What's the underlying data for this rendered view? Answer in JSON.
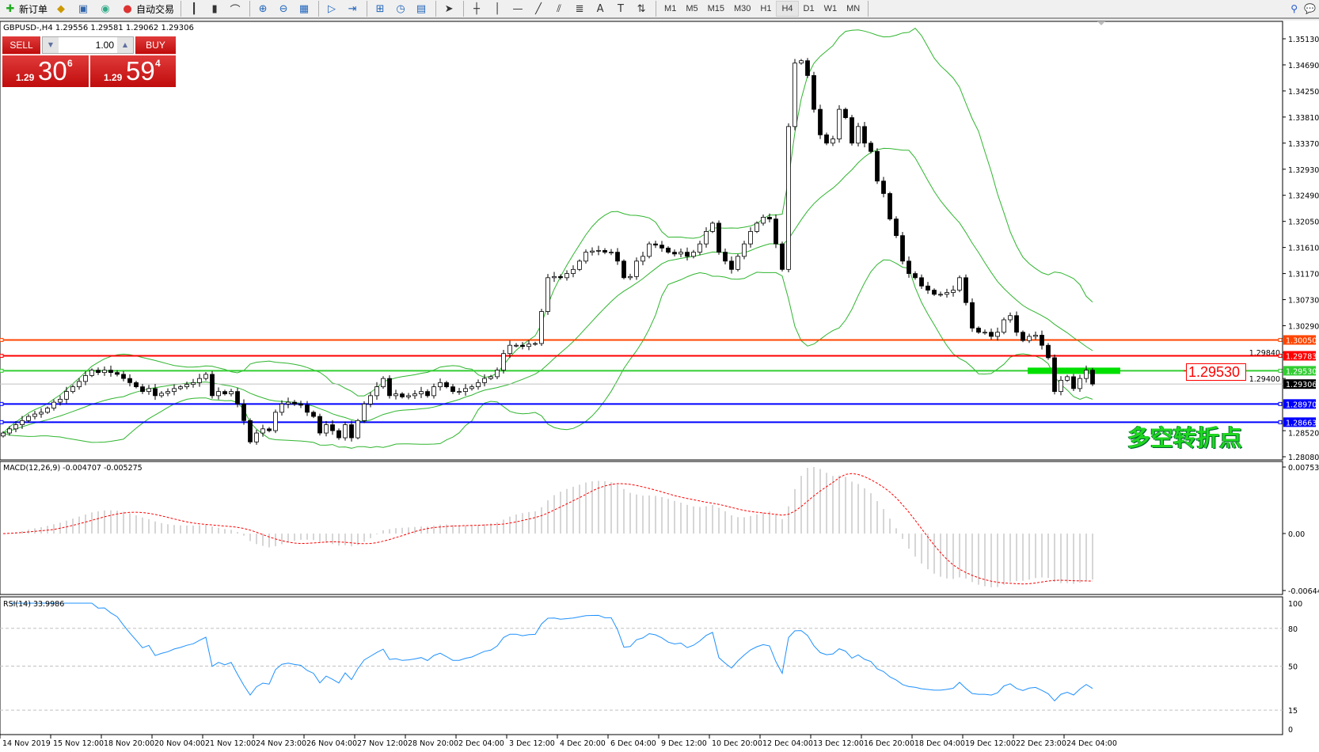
{
  "toolbar": {
    "items": [
      {
        "label": "新订单",
        "icon": "new-order-icon",
        "glyph": "✚"
      },
      {
        "label": "",
        "icon": "market-watch-icon",
        "glyph": "◆"
      },
      {
        "label": "",
        "icon": "navigator-icon",
        "glyph": "▣"
      },
      {
        "label": "",
        "icon": "signal-icon",
        "glyph": "◉"
      },
      {
        "label": "自动交易",
        "icon": "auto-trading-icon",
        "glyph": "●"
      }
    ],
    "tools": [
      {
        "icon": "bar-chart-icon",
        "glyph": "┃"
      },
      {
        "icon": "candlestick-icon",
        "glyph": "▮"
      },
      {
        "icon": "line-chart-icon",
        "glyph": "⌒"
      },
      {
        "icon": "zoom-in-icon",
        "glyph": "⊕"
      },
      {
        "icon": "zoom-out-icon",
        "glyph": "⊖"
      },
      {
        "icon": "tile-windows-icon",
        "glyph": "▦"
      },
      {
        "icon": "auto-scroll-icon",
        "glyph": "▷"
      },
      {
        "icon": "chart-shift-icon",
        "glyph": "⇥"
      },
      {
        "icon": "indicators-icon",
        "glyph": "⊞"
      },
      {
        "icon": "periods-icon",
        "glyph": "◷"
      },
      {
        "icon": "templates-icon",
        "glyph": "▤"
      },
      {
        "icon": "cursor-icon",
        "glyph": "➤"
      },
      {
        "icon": "crosshair-icon",
        "glyph": "┼"
      },
      {
        "icon": "vertical-line-icon",
        "glyph": "│"
      },
      {
        "icon": "horizontal-line-icon",
        "glyph": "—"
      },
      {
        "icon": "trendline-icon",
        "glyph": "╱"
      },
      {
        "icon": "equidistant-channel-icon",
        "glyph": "⫽"
      },
      {
        "icon": "fibonacci-icon",
        "glyph": "≣"
      },
      {
        "icon": "text-icon",
        "glyph": "A"
      },
      {
        "icon": "text-label-icon",
        "glyph": "T"
      },
      {
        "icon": "arrows-icon",
        "glyph": "⇅"
      }
    ],
    "timeframes": [
      "M1",
      "M5",
      "M15",
      "M30",
      "H1",
      "H4",
      "D1",
      "W1",
      "MN"
    ],
    "active_timeframe": "H4",
    "right_icons": [
      {
        "icon": "search-icon",
        "glyph": "⚲"
      },
      {
        "icon": "chat-icon",
        "glyph": "💬"
      }
    ]
  },
  "header": {
    "text": "GBPUSD-,H4  1.29556 1.29581 1.29062 1.29306"
  },
  "trade_panel": {
    "sell_label": "SELL",
    "buy_label": "BUY",
    "lot": "1.00",
    "sell": {
      "prefix": "1.29",
      "big": "30",
      "sup": "6"
    },
    "buy": {
      "prefix": "1.29",
      "big": "59",
      "sup": "4"
    }
  },
  "annotation": {
    "text": "多空转折点",
    "level_label": "1.29530"
  },
  "indicators": {
    "macd_label": "MACD(12,26,9) -0.004707 -0.005275",
    "rsi_label": "RSI(14) 33.9986"
  },
  "colors": {
    "bull": "#ffffff",
    "bear": "#000000",
    "bands": "#2fb52f",
    "macd_hist": "#c0c0c0",
    "macd_signal": "#ff0000",
    "rsi": "#1e90ff"
  },
  "chart_data": [
    {
      "type": "candlestick",
      "symbol": "GBPUSD-",
      "timeframe": "H4",
      "ylim": [
        1.2808,
        1.3513
      ],
      "y_ticks": [
        "1.35130",
        "1.34690",
        "1.34250",
        "1.33810",
        "1.33370",
        "1.32930",
        "1.32490",
        "1.32050",
        "1.31610",
        "1.31170",
        "1.30730",
        "1.30290",
        "1.29840",
        "1.29400",
        "1.28520",
        "1.28080"
      ],
      "x_ticks": [
        "14 Nov 2019",
        "15 Nov 12:00",
        "18 Nov 20:00",
        "20 Nov 04:00",
        "21 Nov 12:00",
        "24 Nov 23:00",
        "26 Nov 04:00",
        "27 Nov 12:00",
        "28 Nov 20:00",
        "2 Dec 04:00",
        "3 Dec 12:00",
        "4 Dec 20:00",
        "6 Dec 04:00",
        "9 Dec 12:00",
        "10 Dec 20:00",
        "12 Dec 04:00",
        "13 Dec 12:00",
        "16 Dec 20:00",
        "18 Dec 04:00",
        "19 Dec 12:00",
        "22 Dec 23:00",
        "24 Dec 04:00"
      ],
      "bars_per_tick": 8,
      "close": [
        1.2848,
        1.2855,
        1.2862,
        1.2869,
        1.2876,
        1.288,
        1.2883,
        1.289,
        1.29,
        1.2905,
        1.2918,
        1.2926,
        1.2935,
        1.2945,
        1.2954,
        1.295,
        1.2954,
        1.295,
        1.2947,
        1.294,
        1.2933,
        1.2926,
        1.2918,
        1.2923,
        1.2911,
        1.2915,
        1.2918,
        1.2923,
        1.2926,
        1.293,
        1.2933,
        1.294,
        1.2947,
        1.2911,
        1.2918,
        1.2914,
        1.2918,
        1.2897,
        1.2869,
        1.2833,
        1.2848,
        1.2855,
        1.2852,
        1.2883,
        1.2897,
        1.29,
        1.2897,
        1.2895,
        1.2883,
        1.2876,
        1.2848,
        1.2862,
        1.2852,
        1.284,
        1.2862,
        1.284,
        1.2869,
        1.2897,
        1.2911,
        1.2926,
        1.294,
        1.2911,
        1.2914,
        1.2909,
        1.2911,
        1.2914,
        1.2918,
        1.2911,
        1.2926,
        1.2933,
        1.2926,
        1.2918,
        1.2918,
        1.2923,
        1.2926,
        1.2933,
        1.294,
        1.2943,
        1.2954,
        1.2982,
        1.2996,
        1.2996,
        1.2994,
        1.2998,
        1.2999,
        1.3053,
        1.311,
        1.3112,
        1.311,
        1.3117,
        1.3124,
        1.3138,
        1.3153,
        1.3155,
        1.3156,
        1.3153,
        1.3153,
        1.3138,
        1.311,
        1.3112,
        1.3138,
        1.3146,
        1.3167,
        1.3165,
        1.316,
        1.3153,
        1.315,
        1.3153,
        1.3146,
        1.3153,
        1.3167,
        1.3188,
        1.3202,
        1.3153,
        1.3138,
        1.3124,
        1.3146,
        1.3167,
        1.3188,
        1.3202,
        1.3212,
        1.3209,
        1.3167,
        1.3124,
        1.3365,
        1.3472,
        1.3476,
        1.3451,
        1.3394,
        1.3351,
        1.3337,
        1.3344,
        1.3394,
        1.338,
        1.3337,
        1.3365,
        1.3337,
        1.3323,
        1.3273,
        1.3252,
        1.3209,
        1.3181,
        1.3138,
        1.3117,
        1.311,
        1.3096,
        1.3089,
        1.3082,
        1.3082,
        1.3085,
        1.3089,
        1.311,
        1.3068,
        1.3025,
        1.3018,
        1.3018,
        1.3011,
        1.3018,
        1.3039,
        1.3046,
        1.3018,
        1.3004,
        1.3011,
        1.3013,
        1.2996,
        1.2975,
        1.2918,
        1.2937,
        1.2943,
        1.2923,
        1.294,
        1.2954,
        1.29306
      ],
      "bollinger": {
        "period": 20,
        "deviation": 2
      },
      "horizontal_lines": [
        {
          "price": "1.30050",
          "color": "#ff4500"
        },
        {
          "price": "1.29783",
          "color": "#ff0000"
        },
        {
          "price": "1.29530",
          "color": "#32cd32"
        },
        {
          "price": "1.28970",
          "color": "#0000ff"
        },
        {
          "price": "1.28663",
          "color": "#0000ff"
        }
      ],
      "bid_line": {
        "price": "1.29306",
        "color": "#000000"
      }
    },
    {
      "type": "macd",
      "params": [
        12,
        26,
        9
      ],
      "ylim": [
        -0.006446,
        0.007538
      ],
      "y_ticks": [
        "0.007538",
        "0.00",
        "-0.006446"
      ],
      "values": [
        "-0.004707",
        "-0.005275"
      ]
    },
    {
      "type": "rsi",
      "period": 14,
      "ylim": [
        0,
        100
      ],
      "y_ticks": [
        "100",
        "80",
        "50",
        "15",
        "0"
      ],
      "levels": [
        80,
        50,
        15
      ],
      "value": "33.9986"
    }
  ]
}
